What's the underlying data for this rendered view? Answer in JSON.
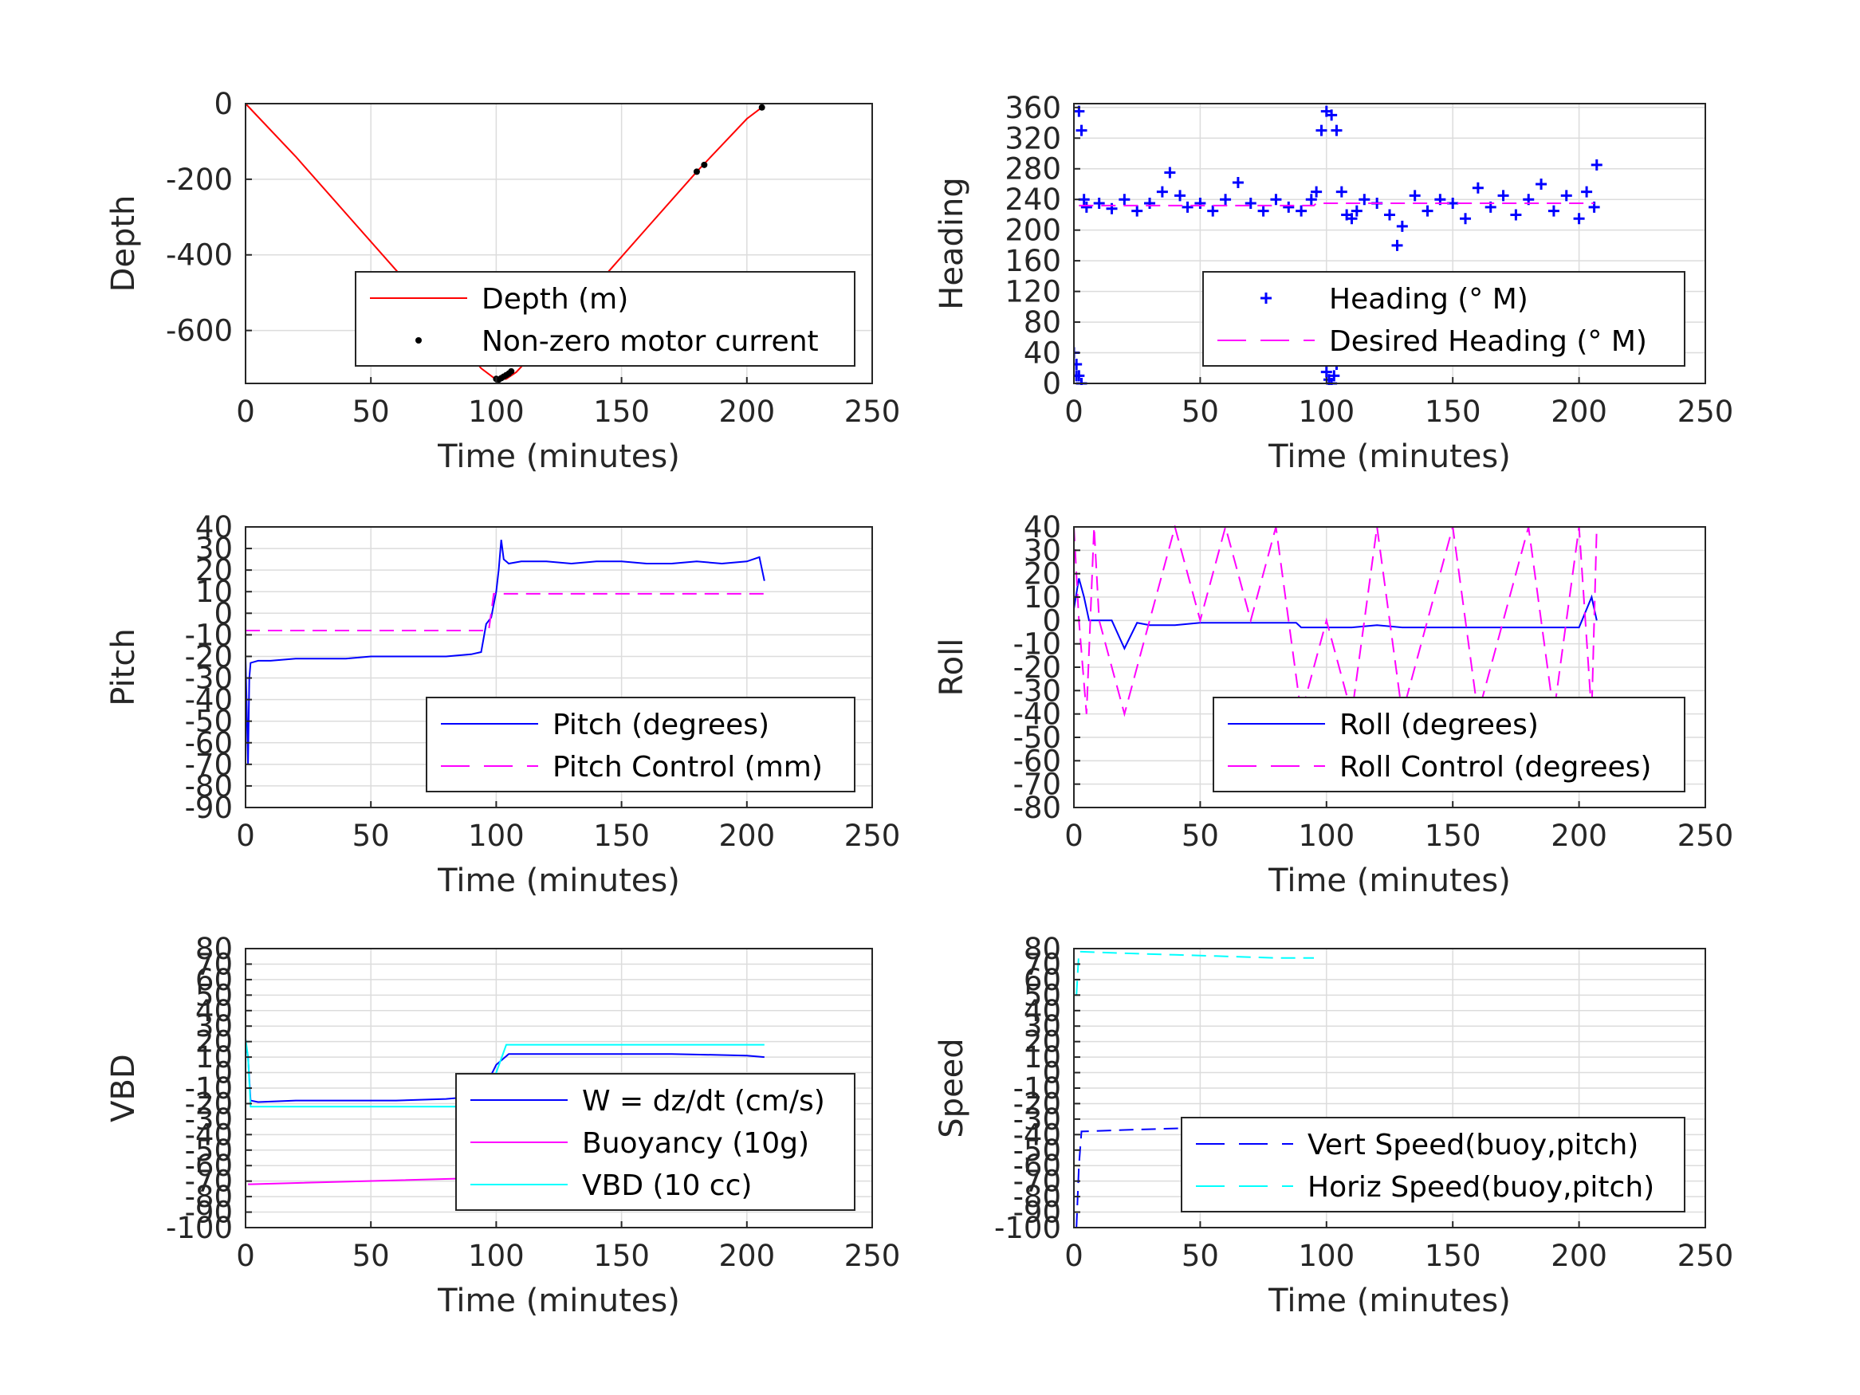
{
  "chart_data": [
    {
      "type": "line",
      "xlabel": "Time (minutes)",
      "ylabel": "Depth",
      "xlim": [
        0,
        250
      ],
      "ylim": [
        -740,
        0
      ],
      "xticks": [
        0,
        50,
        100,
        150,
        200,
        250
      ],
      "yticks": [
        0,
        -200,
        -400,
        -600
      ],
      "grid": true,
      "legend": "bottom-right",
      "series": [
        {
          "name": "Depth (m)",
          "style": "solid",
          "color": "#ff0000",
          "x": [
            0,
            20,
            40,
            60,
            80,
            94,
            100,
            104,
            108,
            120,
            140,
            160,
            180,
            200,
            206
          ],
          "y": [
            0,
            -140,
            -290,
            -440,
            -590,
            -700,
            -730,
            -728,
            -710,
            -625,
            -480,
            -330,
            -180,
            -40,
            -10
          ]
        },
        {
          "name": "Non-zero motor current",
          "style": "dots",
          "color": "#000000",
          "x": [
            100,
            101,
            102,
            103,
            104,
            105,
            106,
            180,
            183,
            206
          ],
          "y": [
            -728,
            -730,
            -726,
            -722,
            -718,
            -714,
            -708,
            -180,
            -162,
            -10
          ]
        }
      ]
    },
    {
      "type": "scatter",
      "xlabel": "Time (minutes)",
      "ylabel": "Heading",
      "xlim": [
        0,
        250
      ],
      "ylim": [
        0,
        365
      ],
      "xticks": [
        0,
        50,
        100,
        150,
        200,
        250
      ],
      "yticks": [
        0,
        40,
        80,
        120,
        160,
        200,
        240,
        280,
        320,
        360
      ],
      "grid": true,
      "legend": "bottom-right",
      "series": [
        {
          "name": "Heading (° M)",
          "style": "plus",
          "color": "#0000ff",
          "x": [
            0,
            1,
            2,
            3,
            4,
            5,
            10,
            15,
            20,
            25,
            30,
            35,
            38,
            42,
            45,
            50,
            55,
            60,
            65,
            70,
            75,
            80,
            85,
            90,
            94,
            96,
            98,
            100,
            102,
            104,
            106,
            108,
            110,
            112,
            115,
            120,
            125,
            128,
            130,
            135,
            140,
            145,
            150,
            155,
            160,
            165,
            170,
            175,
            180,
            185,
            190,
            195,
            200,
            203,
            206,
            207
          ],
          "y": [
            40,
            10,
            355,
            330,
            240,
            230,
            235,
            228,
            240,
            225,
            235,
            250,
            275,
            245,
            230,
            235,
            225,
            240,
            262,
            235,
            225,
            240,
            230,
            225,
            240,
            250,
            330,
            355,
            350,
            330,
            250,
            220,
            215,
            225,
            240,
            235,
            220,
            180,
            205,
            245,
            225,
            240,
            235,
            215,
            255,
            230,
            245,
            220,
            240,
            260,
            225,
            245,
            215,
            250,
            230,
            285
          ]
        },
        {
          "name": "Heading (° M)",
          "style": "plus",
          "color": "#0000ff",
          "x": [
            0,
            1,
            2,
            3,
            99,
            100,
            101,
            102,
            103,
            104
          ],
          "y": [
            40,
            25,
            10,
            0,
            30,
            15,
            5,
            0,
            10,
            25
          ]
        },
        {
          "name": "Desired Heading (° M)",
          "style": "dashed",
          "color": "#ff00ff",
          "x": [
            2,
            95,
            96,
            206
          ],
          "y": [
            232,
            232,
            235,
            235
          ]
        }
      ]
    },
    {
      "type": "line",
      "xlabel": "Time (minutes)",
      "ylabel": "Pitch",
      "xlim": [
        0,
        250
      ],
      "ylim": [
        -90,
        40
      ],
      "xticks": [
        0,
        50,
        100,
        150,
        200,
        250
      ],
      "yticks": [
        40,
        30,
        20,
        10,
        0,
        -10,
        -20,
        -30,
        -40,
        -50,
        -60,
        -70,
        -80,
        -90
      ],
      "grid": true,
      "legend": "bottom-right",
      "series": [
        {
          "name": "Pitch (degrees)",
          "style": "solid",
          "color": "#0000ff",
          "x": [
            0,
            1,
            1.5,
            2,
            5,
            10,
            20,
            30,
            40,
            50,
            60,
            70,
            80,
            90,
            94,
            96,
            98,
            100,
            101,
            102,
            103,
            105,
            110,
            120,
            130,
            140,
            150,
            160,
            170,
            180,
            190,
            200,
            205,
            207
          ],
          "y": [
            -20,
            -70,
            -30,
            -23,
            -22,
            -22,
            -21,
            -21,
            -21,
            -20,
            -20,
            -20,
            -20,
            -19,
            -18,
            -5,
            -2,
            10,
            20,
            34,
            25,
            23,
            24,
            24,
            23,
            24,
            24,
            23,
            23,
            24,
            23,
            24,
            26,
            15
          ]
        },
        {
          "name": "Pitch Control (mm)",
          "style": "dashed",
          "color": "#ff00ff",
          "x": [
            0,
            97,
            99,
            207
          ],
          "y": [
            -8,
            -8,
            9,
            9
          ]
        }
      ]
    },
    {
      "type": "line",
      "xlabel": "Time (minutes)",
      "ylabel": "Roll",
      "xlim": [
        0,
        250
      ],
      "ylim": [
        -80,
        40
      ],
      "xticks": [
        0,
        50,
        100,
        150,
        200,
        250
      ],
      "yticks": [
        40,
        30,
        20,
        10,
        0,
        -10,
        -20,
        -30,
        -40,
        -50,
        -60,
        -70,
        -80
      ],
      "grid": true,
      "legend": "bottom-right",
      "series": [
        {
          "name": "Roll (degrees)",
          "style": "solid",
          "color": "#0000ff",
          "x": [
            0,
            2,
            4,
            6,
            8,
            15,
            20,
            25,
            30,
            40,
            50,
            60,
            70,
            80,
            88,
            90,
            95,
            100,
            105,
            110,
            120,
            130,
            140,
            150,
            160,
            170,
            180,
            190,
            200,
            205,
            207
          ],
          "y": [
            5,
            18,
            10,
            0,
            0,
            0,
            -12,
            -1,
            -2,
            -2,
            -1,
            -1,
            -1,
            -1,
            -1,
            -3,
            -3,
            -3,
            -3,
            -3,
            -2,
            -3,
            -3,
            -3,
            -3,
            -3,
            -3,
            -3,
            -3,
            10,
            0
          ]
        },
        {
          "name": "Roll Control (degrees)",
          "style": "dashed",
          "color": "#ff00ff",
          "x": [
            0,
            2,
            5,
            8,
            10,
            20,
            30,
            40,
            50,
            60,
            70,
            80,
            90,
            100,
            110,
            120,
            130,
            140,
            150,
            160,
            170,
            180,
            190,
            200,
            205,
            207
          ],
          "y": [
            40,
            0,
            -40,
            40,
            0,
            -40,
            0,
            40,
            0,
            40,
            0,
            40,
            -40,
            0,
            -40,
            40,
            -40,
            0,
            40,
            -40,
            0,
            40,
            -40,
            40,
            -40,
            40
          ]
        }
      ]
    },
    {
      "type": "line",
      "xlabel": "Time (minutes)",
      "ylabel": "VBD",
      "xlim": [
        0,
        250
      ],
      "ylim": [
        -100,
        80
      ],
      "xticks": [
        0,
        50,
        100,
        150,
        200,
        250
      ],
      "yticks": [
        80,
        70,
        60,
        50,
        40,
        30,
        20,
        10,
        0,
        -10,
        -20,
        -30,
        -40,
        -50,
        -60,
        -70,
        -80,
        -90,
        -100
      ],
      "grid": true,
      "legend": "bottom-right",
      "series": [
        {
          "name": "W = dz/dt (cm/s)",
          "style": "solid",
          "color": "#0000ff",
          "x": [
            0,
            1,
            2,
            5,
            20,
            40,
            60,
            80,
            94,
            96,
            100,
            105,
            110,
            140,
            170,
            200,
            207
          ],
          "y": [
            20,
            10,
            -18,
            -19,
            -18,
            -18,
            -18,
            -17,
            -15,
            -8,
            5,
            12,
            12,
            12,
            12,
            11,
            10
          ]
        },
        {
          "name": "Buoyancy (10g)",
          "style": "solid",
          "color": "#ff00ff",
          "x": [
            1,
            2,
            94
          ],
          "y": [
            -72,
            -72,
            -68
          ]
        },
        {
          "name": "VBD (10 cc)",
          "style": "solid",
          "color": "#00ffff",
          "x": [
            0,
            1,
            2,
            94,
            96,
            100,
            104,
            207
          ],
          "y": [
            22,
            10,
            -22,
            -22,
            -18,
            0,
            18,
            18
          ]
        }
      ]
    },
    {
      "type": "line",
      "xlabel": "Time (minutes)",
      "ylabel": "Speed",
      "xlim": [
        0,
        250
      ],
      "ylim": [
        -100,
        80
      ],
      "xticks": [
        0,
        50,
        100,
        150,
        200,
        250
      ],
      "yticks": [
        80,
        70,
        60,
        50,
        40,
        30,
        20,
        10,
        0,
        -10,
        -20,
        -30,
        -40,
        -50,
        -60,
        -70,
        -80,
        -90,
        -100
      ],
      "grid": true,
      "legend": "bottom-right",
      "series": [
        {
          "name": "Vert Speed(buoy,pitch)",
          "style": "dashed",
          "color": "#0000ff",
          "x": [
            1,
            2,
            3,
            20,
            40,
            60,
            80,
            92
          ],
          "y": [
            -100,
            -60,
            -38,
            -37,
            -36,
            -35,
            -34,
            -34
          ]
        },
        {
          "name": "Horiz Speed(buoy,pitch)",
          "style": "dashed",
          "color": "#00ffff",
          "x": [
            1,
            2,
            3,
            20,
            40,
            60,
            80,
            95
          ],
          "y": [
            50,
            78,
            78,
            77,
            76,
            75,
            74,
            74
          ]
        }
      ]
    }
  ]
}
